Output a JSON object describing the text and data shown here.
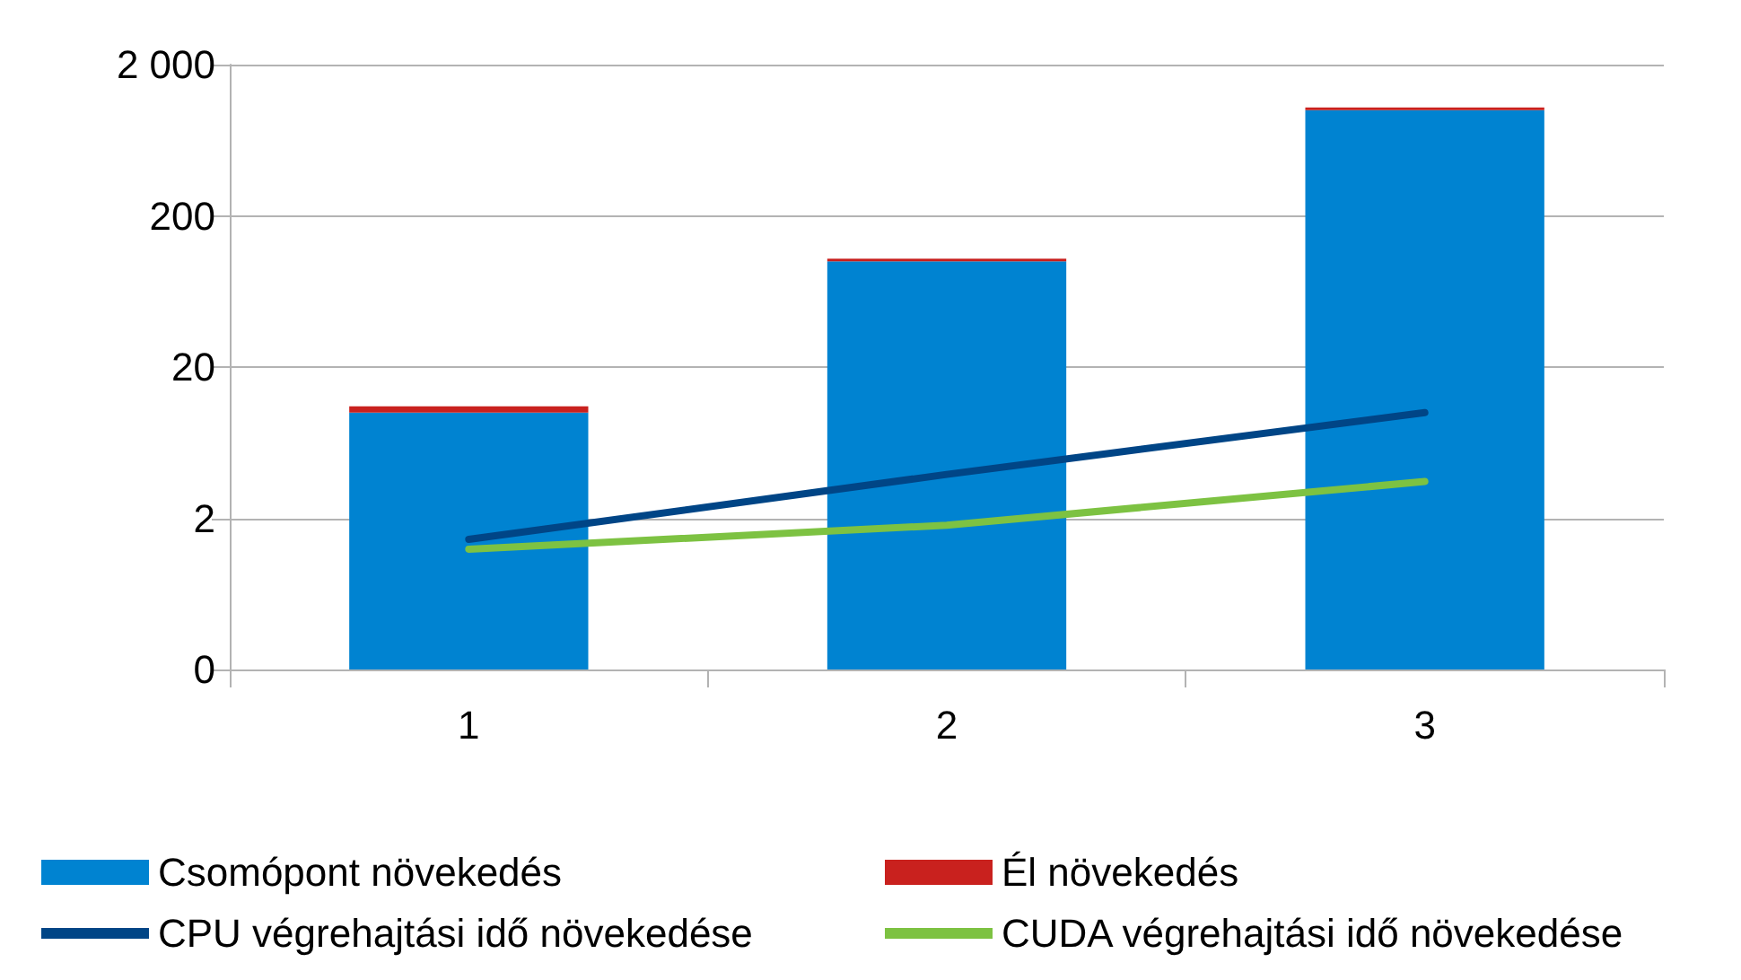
{
  "chart_data": {
    "type": "bar",
    "categories": [
      "1",
      "2",
      "3"
    ],
    "stacked": true,
    "log": "y",
    "ylim": [
      0.2,
      2000
    ],
    "yticks": [
      {
        "value": 0.2,
        "label": "0"
      },
      2,
      20,
      200,
      {
        "value": 2000,
        "label": "2 000"
      }
    ],
    "grid": "y",
    "legend": "bottom",
    "marker": "none",
    "line_style": "solid",
    "series": [
      {
        "name": "Csomópont növekedés",
        "color": "#0083d1",
        "values": [
          10,
          100,
          1000
        ]
      },
      {
        "name": "Él növekedés",
        "color": "#c9211e",
        "values": [
          1,
          4,
          40
        ]
      },
      {
        "name": "CPU végrehajtási idő növekedése",
        "type": "line",
        "color": "#004586",
        "values": [
          1.45,
          3.9,
          10
        ]
      },
      {
        "name": "CUDA végrehajtási idő növekedése",
        "type": "line",
        "color": "#7dc242",
        "values": [
          1.25,
          1.8,
          3.5
        ]
      }
    ]
  }
}
